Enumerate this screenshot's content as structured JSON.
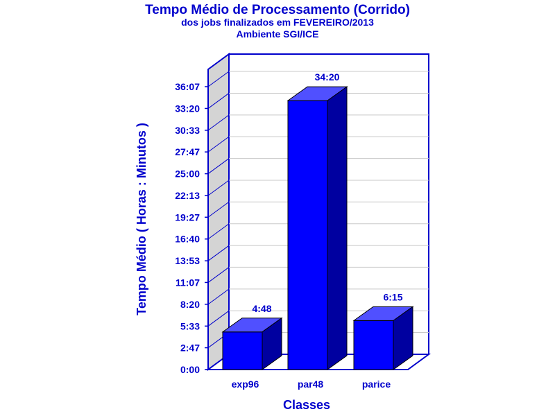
{
  "chart_data": {
    "type": "bar",
    "title": "Tempo Médio de Processamento (Corrido)",
    "subtitles": [
      "dos jobs finalizados em FEVEREIRO/2013",
      "Ambiente SGI/ICE"
    ],
    "xlabel": "Classes",
    "ylabel": "Tempo Médio ( Horas : Minutos )",
    "categories": [
      "exp96",
      "par48",
      "parice"
    ],
    "values": [
      288,
      2060,
      375
    ],
    "value_labels": [
      "4:48",
      "34:20",
      "6:15"
    ],
    "y_ticks": [
      0,
      167,
      333,
      500,
      667,
      833,
      1000,
      1167,
      1333,
      1500,
      1667,
      1833,
      2000,
      2167
    ],
    "y_tick_labels": [
      "0:00",
      "2:47",
      "5:33",
      "8:20",
      "11:07",
      "13:53",
      "16:40",
      "19:27",
      "22:13",
      "25:00",
      "27:47",
      "30:33",
      "33:20",
      "36:07"
    ],
    "ylim": [
      0,
      2167
    ],
    "grid": true,
    "legend": "none",
    "colors": {
      "bar_front": "#0000ff",
      "bar_top": "#5050ff",
      "bar_side": "#0000a0",
      "axis": "#0000cc",
      "wall": "#d4d4d4",
      "grid": "#c8c8c8"
    }
  }
}
